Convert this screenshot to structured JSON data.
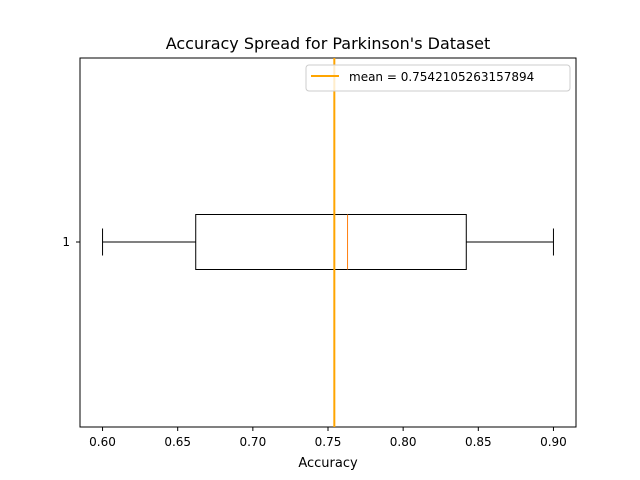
{
  "chart_data": {
    "type": "boxplot",
    "orientation": "horizontal",
    "title": "Accuracy Spread for Parkinson's Dataset",
    "xlabel": "Accuracy",
    "ylabel": "",
    "xlim": [
      0.585,
      0.915
    ],
    "x_ticks": [
      0.6,
      0.65,
      0.7,
      0.75,
      0.8,
      0.85,
      0.9
    ],
    "x_tick_labels": [
      "0.60",
      "0.65",
      "0.70",
      "0.75",
      "0.80",
      "0.85",
      "0.90"
    ],
    "y_tick_labels": [
      "1"
    ],
    "box": {
      "whisker_low": 0.6,
      "q1": 0.662,
      "median": 0.763,
      "q3": 0.842,
      "whisker_high": 0.9
    },
    "mean_line": {
      "value": 0.7542105263157894,
      "label": "mean = 0.7542105263157894",
      "color": "#ffa500"
    },
    "median_color": "#ff7f0e",
    "box_color": "#000000",
    "legend_placement": "top-right",
    "grid": false
  }
}
